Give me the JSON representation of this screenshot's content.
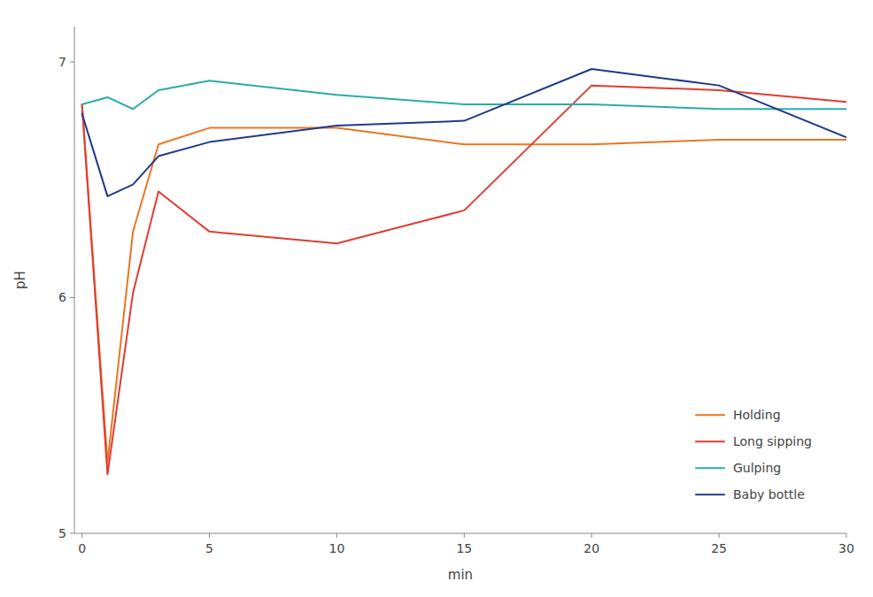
{
  "chart_data": {
    "type": "line",
    "xlabel": "min",
    "ylabel": "pH",
    "x": [
      0,
      1,
      2,
      3,
      5,
      10,
      15,
      20,
      25,
      30
    ],
    "series": [
      {
        "name": "Holding",
        "color": "#E87722",
        "values": [
          6.82,
          5.3,
          6.28,
          6.65,
          6.72,
          6.72,
          6.65,
          6.65,
          6.67,
          6.67
        ]
      },
      {
        "name": "Long sipping",
        "color": "#E03C31",
        "values": [
          6.82,
          5.25,
          6.02,
          6.45,
          6.28,
          6.23,
          6.37,
          6.9,
          6.88,
          6.83
        ]
      },
      {
        "name": "Gulping",
        "color": "#2AACAA",
        "values": [
          6.82,
          6.85,
          6.8,
          6.88,
          6.92,
          6.86,
          6.82,
          6.82,
          6.8,
          6.8
        ]
      },
      {
        "name": "Baby bottle",
        "color": "#1F3A8A",
        "values": [
          6.78,
          6.43,
          6.48,
          6.6,
          6.66,
          6.73,
          6.75,
          6.97,
          6.9,
          6.68
        ]
      }
    ],
    "xlim": [
      -0.3,
      30
    ],
    "ylim": [
      5,
      7.15
    ],
    "xticks": [
      0,
      5,
      10,
      15,
      20,
      25,
      30
    ],
    "yticks": [
      5,
      6,
      7
    ],
    "grid": false,
    "legend": "lower right"
  }
}
